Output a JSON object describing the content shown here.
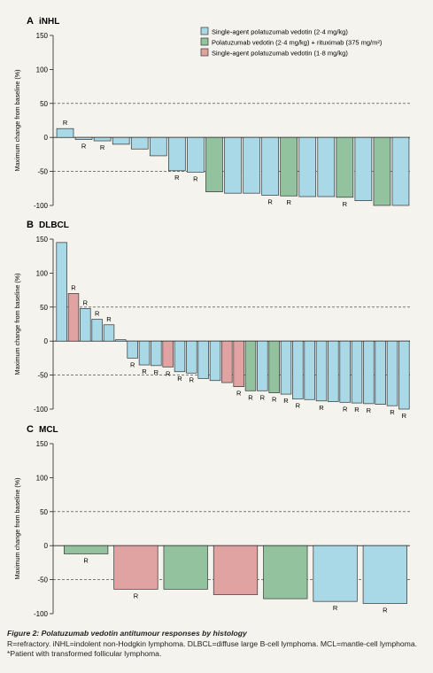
{
  "colors": {
    "single_2_4": "#a9d8e7",
    "combo": "#93c29f",
    "single_1_8": "#e0a3a2",
    "edge": "#333333",
    "panel_bg": "#f4f3ee"
  },
  "legend": [
    {
      "label": "Single-agent polatuzumab vedotin (2·4 mg/kg)",
      "color": "single_2_4"
    },
    {
      "label": "Polatuzumab vedotin (2·4 mg/kg) + rituximab (375 mg/m²)",
      "color": "combo"
    },
    {
      "label": "Single-agent polatuzumab vedotin (1·8 mg/kg)",
      "color": "single_1_8"
    }
  ],
  "caption": {
    "title": "Figure 2: Polatuzumab vedotin antitumour responses by histology",
    "text": "R=refractory. iNHL=indolent non-Hodgkin lymphoma. DLBCL=diffuse large B-cell lymphoma. MCL=mantle-cell lymphoma. *Patient with transformed follicular lymphoma."
  },
  "chart_data": [
    {
      "type": "bar",
      "panel_letter": "A",
      "title": "iNHL",
      "ylabel": "Maximum change from baseline (%)",
      "ylim": [
        -100,
        150
      ],
      "yticks": [
        150,
        100,
        50,
        0,
        -50,
        -100
      ],
      "reference_lines": [
        50,
        -50
      ],
      "values": [
        13,
        -3,
        -5,
        -10,
        -17,
        -27,
        -49,
        -51,
        -80,
        -82,
        -82,
        -85,
        -86,
        -87,
        -87,
        -88,
        -93,
        -100,
        -100
      ],
      "groups": [
        "single_2_4",
        "single_2_4",
        "single_2_4",
        "single_2_4",
        "single_2_4",
        "single_2_4",
        "single_2_4",
        "single_2_4",
        "combo",
        "single_2_4",
        "single_2_4",
        "single_2_4",
        "combo",
        "single_2_4",
        "single_2_4",
        "combo",
        "single_2_4",
        "combo",
        "single_2_4"
      ],
      "refractory": [
        true,
        true,
        true,
        false,
        false,
        false,
        true,
        true,
        false,
        false,
        false,
        true,
        true,
        false,
        false,
        true,
        false,
        false,
        false
      ]
    },
    {
      "type": "bar",
      "panel_letter": "B",
      "title": "DLBCL",
      "ylabel": "Maximum change from baseline (%)",
      "ylim": [
        -100,
        150
      ],
      "yticks": [
        150,
        100,
        50,
        0,
        -50,
        -100
      ],
      "reference_lines": [
        50,
        -50
      ],
      "values": [
        145,
        70,
        48,
        32,
        24,
        2,
        -25,
        -35,
        -36,
        -38,
        -45,
        -47,
        -55,
        -58,
        -61,
        -67,
        -73,
        -73,
        -76,
        -78,
        -85,
        -86,
        -88,
        -89,
        -90,
        -91,
        -92,
        -93,
        -95,
        -100
      ],
      "groups": [
        "single_2_4",
        "single_1_8",
        "single_2_4",
        "single_2_4",
        "single_2_4",
        "single_2_4",
        "single_2_4",
        "single_2_4",
        "single_2_4",
        "single_1_8",
        "single_2_4",
        "single_2_4",
        "single_2_4",
        "single_2_4",
        "single_1_8",
        "single_1_8",
        "combo",
        "single_2_4",
        "combo",
        "single_2_4",
        "single_2_4",
        "single_2_4",
        "single_2_4",
        "single_2_4",
        "single_2_4",
        "single_2_4",
        "single_2_4",
        "single_2_4",
        "single_2_4",
        "single_2_4"
      ],
      "refractory": [
        false,
        true,
        true,
        true,
        true,
        false,
        true,
        true,
        true,
        true,
        true,
        true,
        false,
        false,
        false,
        true,
        true,
        true,
        true,
        true,
        true,
        false,
        true,
        false,
        true,
        true,
        true,
        false,
        true,
        true
      ]
    },
    {
      "type": "bar",
      "panel_letter": "C",
      "title": "MCL",
      "ylabel": "Maximum change from baseline (%)",
      "ylim": [
        -100,
        150
      ],
      "yticks": [
        150,
        100,
        50,
        0,
        -50,
        -100
      ],
      "reference_lines": [
        50,
        -50
      ],
      "values": [
        -12,
        -64,
        -64,
        -72,
        -78,
        -82,
        -85
      ],
      "groups": [
        "combo",
        "single_1_8",
        "combo",
        "single_1_8",
        "combo",
        "single_2_4",
        "single_2_4"
      ],
      "refractory": [
        true,
        true,
        false,
        false,
        false,
        true,
        true
      ]
    }
  ],
  "refractory_label": "R"
}
